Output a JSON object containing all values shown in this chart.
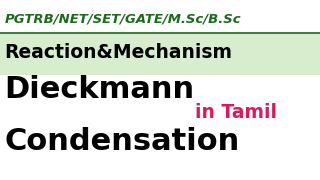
{
  "bg_color": "#ffffff",
  "top_text": "PGTRB/NET/SET/GATE/M.Sc/B.Sc",
  "top_text_color": "#1a6b1a",
  "green_band_color": "#d8edce",
  "green_band_text": "Reaction&Mechanism",
  "green_band_text_color": "#000000",
  "main_line1": "Dieckmann",
  "main_line2": "Condensation",
  "main_text_color": "#000000",
  "sub_text": "in Tamil",
  "sub_text_color": "#e0185a",
  "underline_color": "#1a6b1a",
  "figsize": [
    3.2,
    1.8
  ],
  "dpi": 100
}
